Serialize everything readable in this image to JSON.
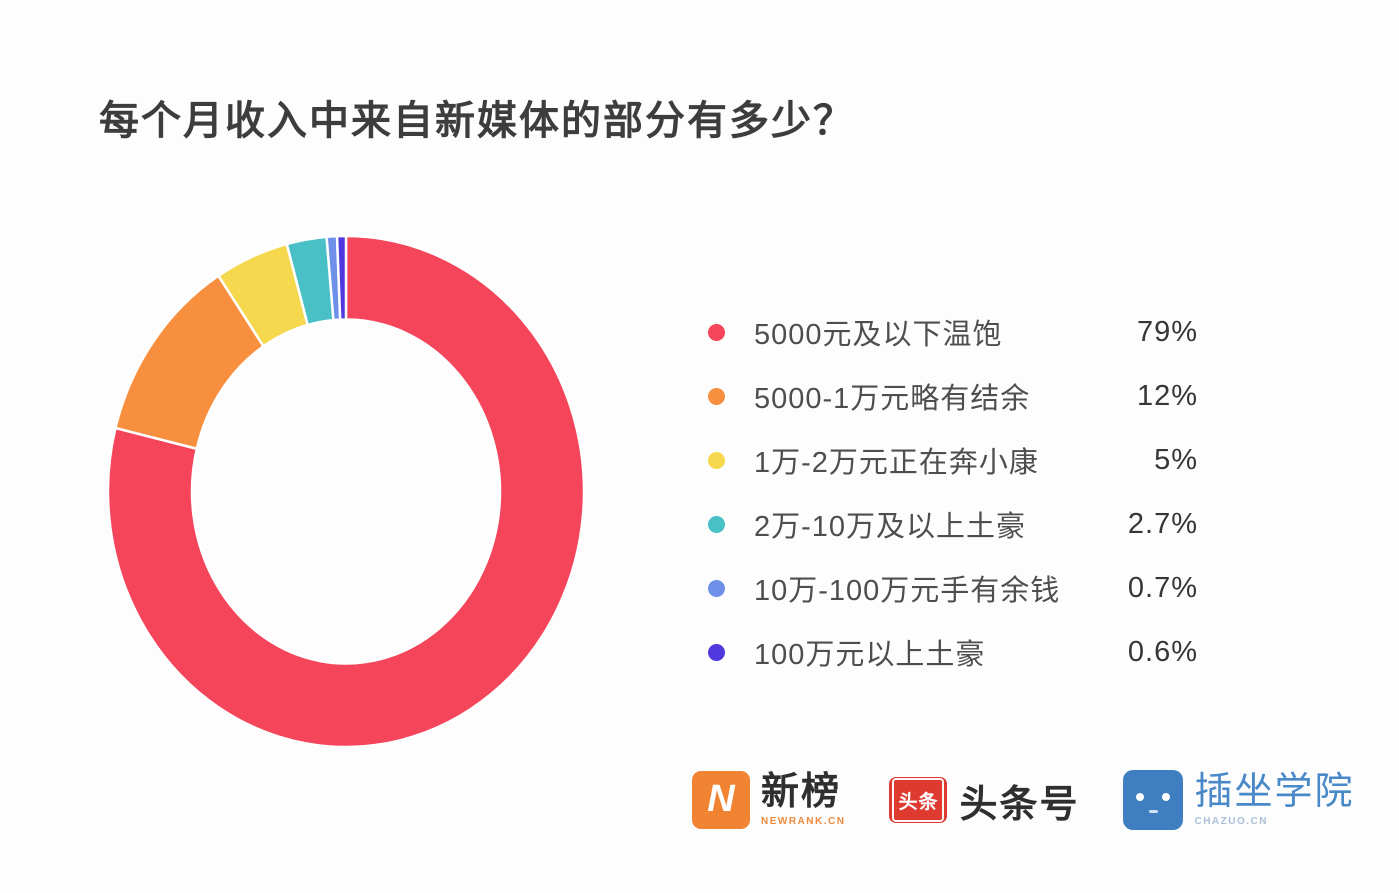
{
  "title": "每个月收入中来自新媒体的部分有多少？",
  "chart_data": {
    "type": "pie",
    "subtype": "donut",
    "title": "每个月收入中来自新媒体的部分有多少？",
    "categories": [
      "5000元及以下温饱",
      "5000-1万元略有结余",
      "1万-2万元正在奔小康",
      "2万-10万及以上土豪",
      "10万-100万元手有余钱",
      "100万元以上土豪"
    ],
    "values": [
      79,
      12,
      5,
      2.7,
      0.7,
      0.6
    ],
    "value_labels": [
      "79%",
      "12%",
      "5%",
      "2.7%",
      "0.7%",
      "0.6%"
    ],
    "colors": [
      "#f4455b",
      "#f78f3e",
      "#f6d84e",
      "#49bfc6",
      "#6e90e8",
      "#4f38de"
    ],
    "start_angle_deg": 0,
    "direction": "clockwise",
    "legend_position": "right",
    "donut_hole_ratio": 0.66,
    "slice_separator_color": "#ffffff"
  },
  "footer": {
    "logos": [
      {
        "id": "newrank",
        "icon_letter": "N",
        "name": "新榜",
        "sub": "NEWRANK.CN"
      },
      {
        "id": "toutiao",
        "badge": "头条",
        "name": "头条号"
      },
      {
        "id": "chazuo",
        "name": "插坐学院",
        "sub": "CHAZUO.CN"
      }
    ]
  }
}
